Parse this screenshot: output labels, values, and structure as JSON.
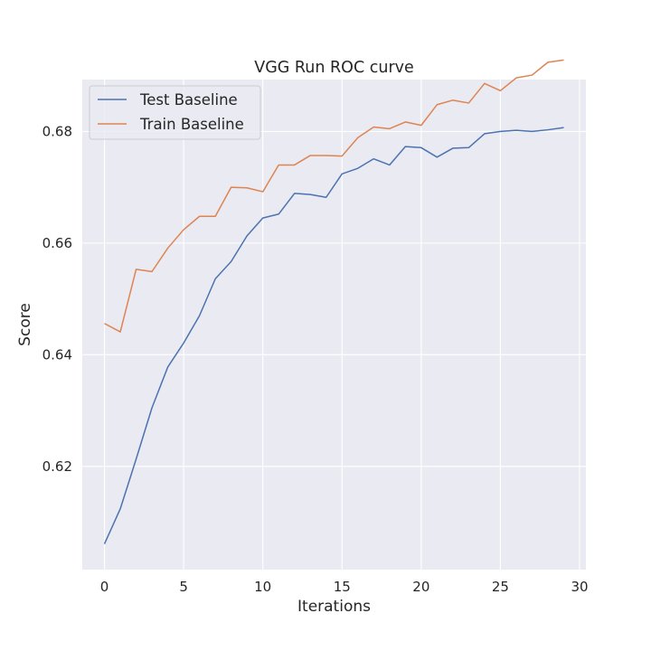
{
  "chart_data": {
    "type": "line",
    "title": "VGG Run ROC curve",
    "xlabel": "Iterations",
    "ylabel": "Score",
    "xlim": [
      -1.4,
      30.4
    ],
    "ylim": [
      0.6015,
      0.6893
    ],
    "xticks": [
      0,
      5,
      10,
      15,
      20,
      25,
      30
    ],
    "xtick_labels": [
      "0",
      "5",
      "10",
      "15",
      "20",
      "25",
      "30"
    ],
    "yticks": [
      0.62,
      0.64,
      0.66,
      0.68
    ],
    "ytick_labels": [
      "0.62",
      "0.64",
      "0.66",
      "0.68"
    ],
    "grid": true,
    "legend_position": "top-left",
    "background": "#eaeaf2",
    "grid_color": "#ffffff",
    "x": [
      0,
      1,
      2,
      3,
      4,
      5,
      6,
      7,
      8,
      9,
      10,
      11,
      12,
      13,
      14,
      15,
      16,
      17,
      18,
      19,
      20,
      21,
      22,
      23,
      24,
      25,
      26,
      27,
      28,
      29
    ],
    "series": [
      {
        "name": "Test Baseline",
        "color": "#4c72b0",
        "values": [
          0.6061,
          0.6124,
          0.6213,
          0.6305,
          0.6378,
          0.6421,
          0.647,
          0.6536,
          0.6567,
          0.6613,
          0.6645,
          0.6652,
          0.6689,
          0.6687,
          0.6682,
          0.6724,
          0.6734,
          0.6751,
          0.674,
          0.6773,
          0.6771,
          0.6754,
          0.677,
          0.6771,
          0.6796,
          0.68,
          0.6802,
          0.68,
          0.6803,
          0.6807
        ]
      },
      {
        "name": "Train Baseline",
        "color": "#dd8452",
        "values": [
          0.6456,
          0.6441,
          0.6553,
          0.6549,
          0.6591,
          0.6624,
          0.6648,
          0.6648,
          0.67,
          0.6699,
          0.6692,
          0.674,
          0.674,
          0.6757,
          0.6757,
          0.6756,
          0.6789,
          0.6808,
          0.6805,
          0.6817,
          0.6811,
          0.6848,
          0.6856,
          0.6851,
          0.6886,
          0.6873,
          0.6896,
          0.6901,
          0.6924,
          0.6928
        ]
      }
    ]
  }
}
